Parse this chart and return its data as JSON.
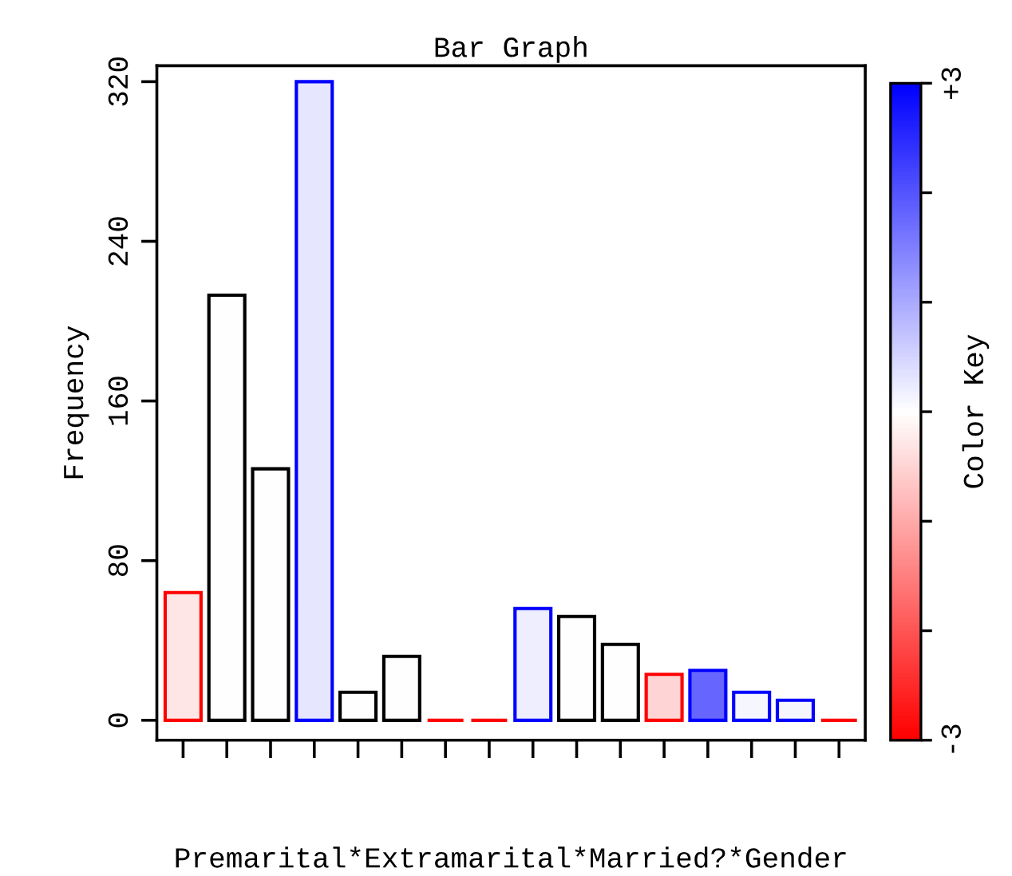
{
  "chart_data": {
    "type": "bar",
    "title": "Bar Graph",
    "xlabel": "Premarital*Extramarital*Married?*Gender",
    "ylabel": "Frequency",
    "clabel": "Color Key",
    "categories": [
      null,
      null,
      null,
      null,
      null,
      null,
      null,
      null,
      null,
      null,
      null,
      null,
      null,
      null,
      null,
      null
    ],
    "values": [
      64,
      213,
      126,
      320,
      14,
      32,
      0,
      0,
      56,
      52,
      38,
      23,
      25,
      14,
      10,
      0
    ],
    "cvalues": [
      -0.3,
      0,
      0,
      0.3,
      0,
      0,
      -3,
      -3,
      0.2,
      0,
      0,
      -0.5,
      1.8,
      0.1,
      0.1,
      -3
    ],
    "ylim": [
      -10,
      328
    ],
    "yticks": [
      0,
      80,
      160,
      240,
      320
    ],
    "clim": [
      -3,
      3
    ],
    "cticks": [
      {
        "value": -3,
        "label": "-3"
      },
      {
        "value": -2,
        "label": null
      },
      {
        "value": -1,
        "label": null
      },
      {
        "value": 0,
        "label": null
      },
      {
        "value": 1,
        "label": null
      },
      {
        "value": 2,
        "label": null
      },
      {
        "value": 3,
        "label": "+3"
      }
    ],
    "tick_labels": "y"
  }
}
